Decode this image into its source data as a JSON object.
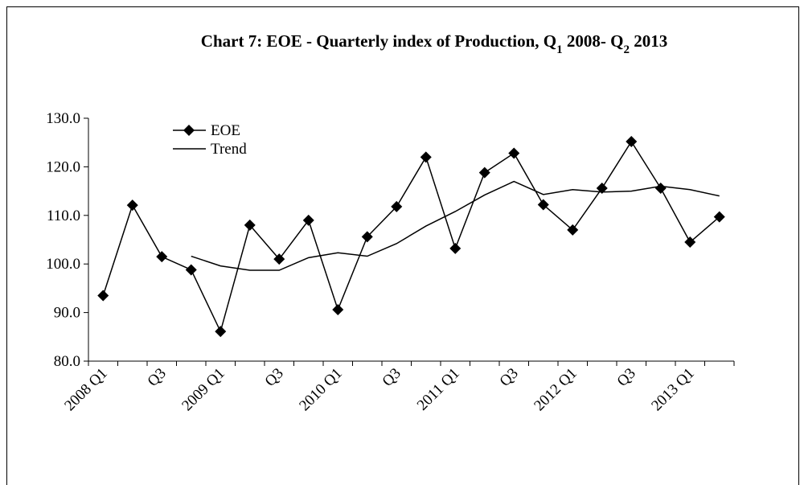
{
  "chart_data": {
    "type": "line",
    "title": [
      "Chart 7: EOE - Quarterly index of Production,  Q",
      "1",
      " 2008- Q",
      "2",
      " 2013"
    ],
    "categories": [
      "2008 Q1",
      null,
      "Q3",
      null,
      "2009 Q1",
      null,
      "Q3",
      null,
      "2010 Q1",
      null,
      "Q3",
      null,
      "2011 Q1",
      null,
      "Q3",
      null,
      "2012 Q1",
      null,
      "Q3",
      null,
      "2013 Q1",
      null
    ],
    "series": [
      {
        "name": "EOE",
        "color": "#000000",
        "marker": "diamond",
        "values": [
          93.5,
          112.1,
          101.5,
          98.8,
          86.1,
          108.0,
          101.0,
          109.0,
          90.6,
          105.6,
          111.8,
          122.0,
          103.2,
          118.8,
          122.8,
          112.2,
          107.0,
          115.6,
          125.2,
          115.6,
          104.5,
          109.7
        ]
      },
      {
        "name": "Trend",
        "color": "#000000",
        "values": [
          null,
          null,
          null,
          101.6,
          99.6,
          98.7,
          98.7,
          101.3,
          102.3,
          101.6,
          104.2,
          107.8,
          110.8,
          114.2,
          117.0,
          114.3,
          115.3,
          114.8,
          115.0,
          116.0,
          115.3,
          114.0
        ]
      }
    ],
    "ylim": [
      80,
      130
    ],
    "yticks": [
      {
        "value": 80,
        "label": "80.0"
      },
      {
        "value": 90,
        "label": "90.0"
      },
      {
        "value": 100,
        "label": "100.0"
      },
      {
        "value": 110,
        "label": "110.0"
      },
      {
        "value": 120,
        "label": "120.0"
      },
      {
        "value": 130,
        "label": "130.0"
      }
    ],
    "legend": "top-left"
  }
}
